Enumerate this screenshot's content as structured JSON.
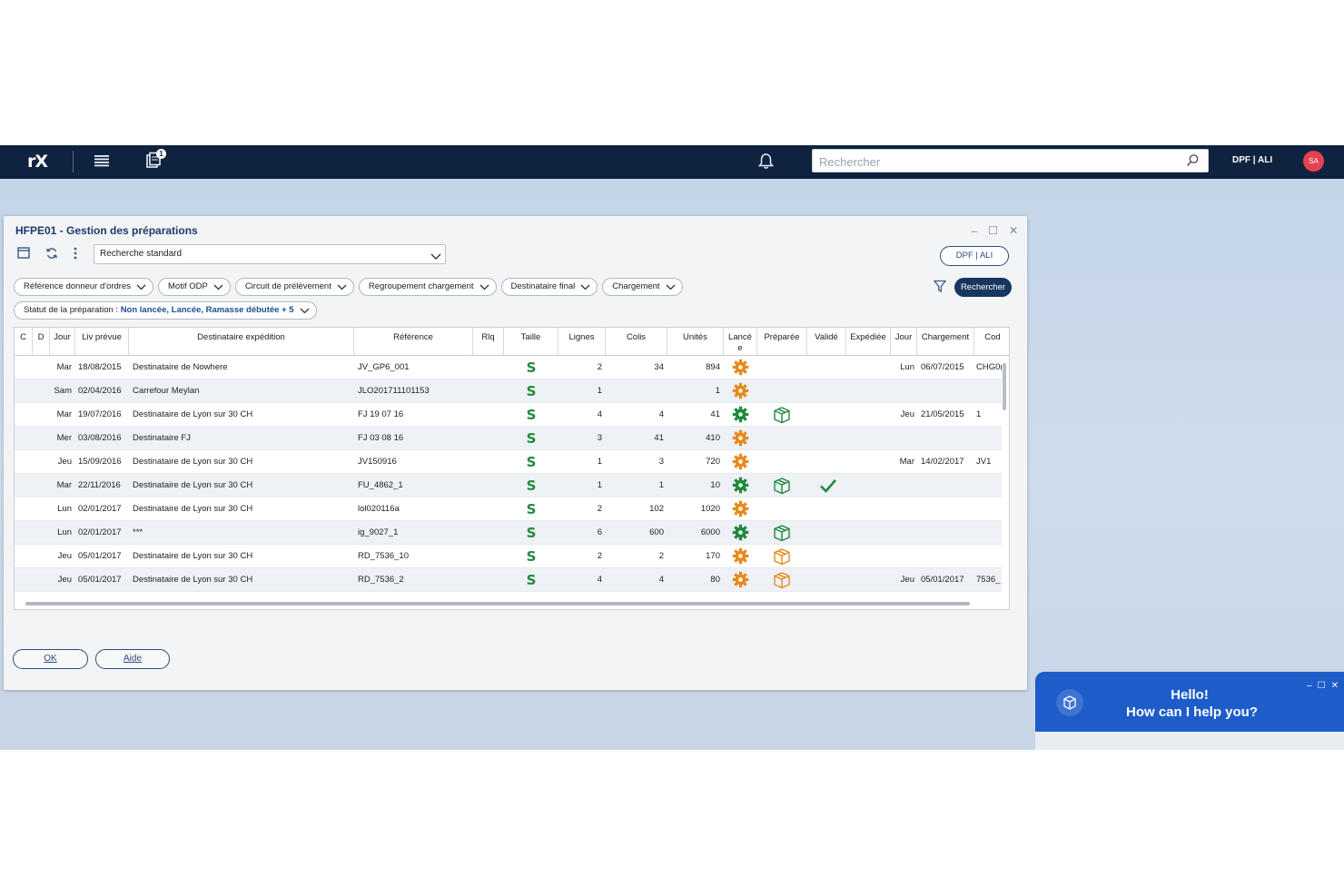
{
  "topbar": {
    "logo": "rX",
    "badge_count": "1",
    "search_placeholder": "Rechercher",
    "org_label": "DPF | ALI",
    "avatar_initials": "SA"
  },
  "window": {
    "title": "HFPE01 - Gestion des préparations",
    "search_select": "Recherche standard",
    "dpf_button": "DPF | ALI",
    "filters": [
      "Référence donneur d'ordres",
      "Motif ODP",
      "Circuit de prélèvement",
      "Regroupement chargement",
      "Destinataire final",
      "Chargement"
    ],
    "statut_label": "Statut de la préparation : ",
    "statut_value": "Non lancée, Lancée, Ramasse débutée + 5",
    "search_button": "Rechercher",
    "ok_button": "OK",
    "help_button": "Aide"
  },
  "table": {
    "columns": [
      "C",
      "D",
      "Jour",
      "Liv prévue",
      "Destinataire expédition",
      "Référence",
      "Rlq",
      "Taille",
      "Lignes",
      "Colis",
      "Unités",
      "Lancé e",
      "Préparée",
      "Validé",
      "Expédiée",
      "Jour",
      "Chargement",
      "Cod"
    ],
    "rows": [
      {
        "jour": "Mar",
        "liv": "18/08/2015",
        "dest": "Destinataire de Nowhere",
        "ref": "JV_GP6_001",
        "taille": "S",
        "lignes": "2",
        "colis": "34",
        "unites": "894",
        "lance": "orange",
        "preparee": "",
        "valide": false,
        "jour2": "Lun",
        "chargement": "06/07/2015",
        "cod": "CHG0("
      },
      {
        "jour": "Sam",
        "liv": "02/04/2016",
        "dest": "Carrefour Meylan",
        "ref": "JLO201711101153",
        "taille": "S",
        "lignes": "1",
        "colis": "",
        "unites": "1",
        "lance": "orange",
        "preparee": "",
        "valide": false,
        "jour2": "",
        "chargement": "",
        "cod": ""
      },
      {
        "jour": "Mar",
        "liv": "19/07/2016",
        "dest": "Destinataire de Lyon sur 30 CH",
        "ref": "FJ 19 07 16",
        "taille": "S",
        "lignes": "4",
        "colis": "4",
        "unites": "41",
        "lance": "green",
        "preparee": "green",
        "valide": false,
        "jour2": "Jeu",
        "chargement": "21/05/2015",
        "cod": "1"
      },
      {
        "jour": "Mer",
        "liv": "03/08/2016",
        "dest": "Destinataire FJ",
        "ref": "FJ 03 08 16",
        "taille": "S",
        "lignes": "3",
        "colis": "41",
        "unites": "410",
        "lance": "orange",
        "preparee": "",
        "valide": false,
        "jour2": "",
        "chargement": "",
        "cod": ""
      },
      {
        "jour": "Jeu",
        "liv": "15/09/2016",
        "dest": "Destinataire de Lyon sur 30 CH",
        "ref": "JV150916",
        "taille": "S",
        "lignes": "1",
        "colis": "3",
        "unites": "720",
        "lance": "orange",
        "preparee": "",
        "valide": false,
        "jour2": "Mar",
        "chargement": "14/02/2017",
        "cod": "JV1"
      },
      {
        "jour": "Mar",
        "liv": "22/11/2016",
        "dest": "Destinataire de Lyon sur 30 CH",
        "ref": "FU_4862_1",
        "taille": "S",
        "lignes": "1",
        "colis": "1",
        "unites": "10",
        "lance": "green",
        "preparee": "green",
        "valide": true,
        "jour2": "",
        "chargement": "",
        "cod": ""
      },
      {
        "jour": "Lun",
        "liv": "02/01/2017",
        "dest": "Destinataire de Lyon sur 30 CH",
        "ref": "lol020116a",
        "taille": "S",
        "lignes": "2",
        "colis": "102",
        "unites": "1020",
        "lance": "orange",
        "preparee": "",
        "valide": false,
        "jour2": "",
        "chargement": "",
        "cod": ""
      },
      {
        "jour": "Lun",
        "liv": "02/01/2017",
        "dest": "***",
        "ref": "ig_9027_1",
        "taille": "S",
        "lignes": "6",
        "colis": "600",
        "unites": "6000",
        "lance": "green",
        "preparee": "green",
        "valide": false,
        "jour2": "",
        "chargement": "",
        "cod": ""
      },
      {
        "jour": "Jeu",
        "liv": "05/01/2017",
        "dest": "Destinataire de Lyon sur 30 CH",
        "ref": "RD_7536_10",
        "taille": "S",
        "lignes": "2",
        "colis": "2",
        "unites": "170",
        "lance": "orange",
        "preparee": "orange",
        "valide": false,
        "jour2": "",
        "chargement": "",
        "cod": ""
      },
      {
        "jour": "Jeu",
        "liv": "05/01/2017",
        "dest": "Destinataire de Lyon sur 30 CH",
        "ref": "RD_7536_2",
        "taille": "S",
        "lignes": "4",
        "colis": "4",
        "unites": "80",
        "lance": "orange",
        "preparee": "orange",
        "valide": false,
        "jour2": "Jeu",
        "chargement": "05/01/2017",
        "cod": "7536_"
      }
    ]
  },
  "chat": {
    "line1": "Hello!",
    "line2": "How can I help you?"
  },
  "colors": {
    "topbar": "#0f2340",
    "accent": "#1b3a6b",
    "orange": "#e8891c",
    "green": "#1f8a3b",
    "chat": "#1d5cc9"
  }
}
